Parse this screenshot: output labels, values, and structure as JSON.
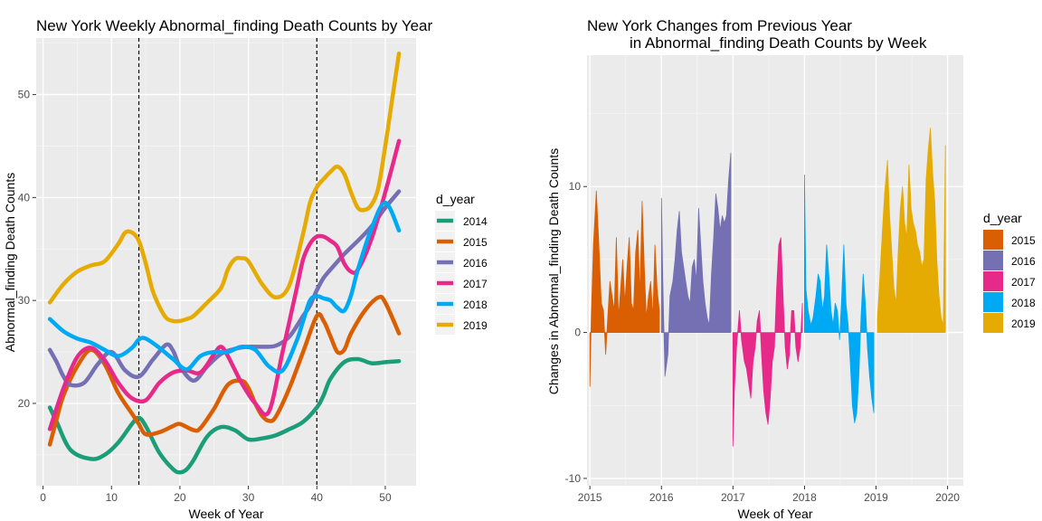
{
  "chart_data": [
    {
      "type": "line",
      "title": "New York Weekly Abnormal_finding Death Counts by Year",
      "xlabel": "Week of Year",
      "ylabel": "Abnormal_finding Death Counts",
      "xlim": [
        -1,
        54.5
      ],
      "ylim": [
        12,
        55.5
      ],
      "x_ticks": [
        0,
        10,
        20,
        30,
        40,
        50
      ],
      "y_ticks": [
        20,
        30,
        40,
        50
      ],
      "vlines": [
        14,
        40
      ],
      "grid": true,
      "legend": {
        "title": "d_year",
        "position": "right"
      },
      "series": [
        {
          "name": "2014",
          "color": "#1b9e77",
          "x": [
            1,
            2,
            4,
            7,
            9,
            11,
            13,
            14,
            15,
            17,
            19,
            20,
            21,
            22,
            24,
            26,
            28,
            30,
            32,
            34,
            36,
            38,
            40,
            41,
            42,
            44,
            46,
            48,
            50,
            52
          ],
          "y": [
            19.6,
            18.2,
            15.5,
            14.6,
            15.0,
            16.2,
            18.0,
            18.6,
            17.8,
            15.2,
            13.6,
            13.3,
            13.6,
            14.5,
            16.8,
            17.7,
            17.4,
            16.5,
            16.6,
            16.9,
            17.5,
            18.2,
            19.6,
            20.8,
            22.4,
            24.0,
            24.3,
            23.9,
            24.0,
            24.1
          ]
        },
        {
          "name": "2015",
          "color": "#d95f02",
          "x": [
            1,
            2,
            3,
            5,
            7,
            9,
            11,
            13,
            14,
            15,
            17,
            19,
            20,
            22,
            23,
            25,
            27,
            29,
            30,
            31,
            32,
            33,
            34,
            36,
            38,
            40,
            41,
            42,
            43,
            44,
            45,
            47,
            49,
            50,
            52
          ],
          "y": [
            16.0,
            18.5,
            20.8,
            23.6,
            25.2,
            23.8,
            21.0,
            19.0,
            18.0,
            17.0,
            17.2,
            17.8,
            18.0,
            17.4,
            17.6,
            19.5,
            21.8,
            22.2,
            21.5,
            20.0,
            18.8,
            18.3,
            18.7,
            21.5,
            25.0,
            28.5,
            28.0,
            26.5,
            25.0,
            25.2,
            26.8,
            29.0,
            30.3,
            29.8,
            26.8
          ]
        },
        {
          "name": "2016",
          "color": "#7570b3",
          "x": [
            1,
            2,
            3,
            4,
            6,
            8,
            10,
            12,
            14,
            16,
            18,
            19,
            20,
            22,
            24,
            26,
            28,
            30,
            32,
            34,
            36,
            38,
            39,
            40,
            41,
            42,
            44,
            46,
            48,
            50,
            52
          ],
          "y": [
            25.2,
            24.0,
            22.6,
            21.8,
            22.0,
            23.8,
            25.0,
            23.2,
            22.6,
            24.2,
            25.7,
            25.1,
            23.6,
            22.2,
            23.6,
            24.8,
            25.3,
            25.5,
            25.5,
            25.6,
            26.5,
            28.5,
            29.5,
            31.0,
            32.2,
            33.0,
            34.5,
            35.8,
            37.2,
            39.0,
            40.6
          ]
        },
        {
          "name": "2017",
          "color": "#e7298a",
          "x": [
            1,
            3,
            5,
            7,
            9,
            11,
            13,
            15,
            17,
            19,
            21,
            23,
            25,
            26,
            27,
            29,
            31,
            33,
            35,
            37,
            38,
            39,
            40,
            41,
            42,
            43,
            44,
            45,
            46,
            48,
            50,
            52
          ],
          "y": [
            17.5,
            21.5,
            24.5,
            25.4,
            24.2,
            22.0,
            20.5,
            20.3,
            22.0,
            23.0,
            23.2,
            23.0,
            24.8,
            25.5,
            24.6,
            22.0,
            20.0,
            19.2,
            25.0,
            31.0,
            34.0,
            35.5,
            36.2,
            36.2,
            35.8,
            35.2,
            33.6,
            32.8,
            33.0,
            36.0,
            40.5,
            45.5
          ]
        },
        {
          "name": "2018",
          "color": "#00a9f4",
          "x": [
            1,
            3,
            5,
            7,
            9,
            11,
            13,
            14,
            15,
            17,
            19,
            21,
            23,
            25,
            27,
            29,
            31,
            33,
            35,
            37,
            38,
            39,
            40,
            41,
            42,
            43,
            44,
            45,
            46,
            48,
            50,
            52
          ],
          "y": [
            28.2,
            27.0,
            26.3,
            25.9,
            25.2,
            24.6,
            25.4,
            26.2,
            26.3,
            25.4,
            24.3,
            23.3,
            24.6,
            25.0,
            25.0,
            25.5,
            25.2,
            23.6,
            23.2,
            26.0,
            28.0,
            30.0,
            30.4,
            30.2,
            30.0,
            29.3,
            29.0,
            30.5,
            33.0,
            37.0,
            39.5,
            36.8
          ]
        },
        {
          "name": "2019",
          "color": "#e6ab02",
          "x": [
            1,
            3,
            5,
            7,
            9,
            11,
            12,
            13,
            14,
            15,
            16,
            17,
            18,
            19,
            20,
            21,
            22,
            24,
            26,
            27,
            28,
            29,
            30,
            32,
            34,
            36,
            38,
            39,
            40,
            41,
            42,
            43,
            44,
            45,
            46,
            47,
            48,
            49,
            50,
            51,
            52
          ],
          "y": [
            29.8,
            31.6,
            32.8,
            33.4,
            33.8,
            35.5,
            36.6,
            36.6,
            35.8,
            33.6,
            31.0,
            29.4,
            28.3,
            28.0,
            28.0,
            28.2,
            28.5,
            29.8,
            31.2,
            33.0,
            34.0,
            34.1,
            33.8,
            31.6,
            30.3,
            31.5,
            36.5,
            39.5,
            41.0,
            41.8,
            42.5,
            43.0,
            42.3,
            40.5,
            39.0,
            38.8,
            39.3,
            41.0,
            45.0,
            49.5,
            54.0
          ]
        }
      ]
    },
    {
      "type": "bar",
      "title": [
        "New York Changes from Previous Year",
        "in Abnormal_finding Death Counts by Week"
      ],
      "xlabel": "Week of Year",
      "ylabel": "Changes in Abnormal_finding Death Counts",
      "xlim": [
        2014.96,
        2020.22
      ],
      "ylim": [
        -10.5,
        19
      ],
      "x_ticks": [
        2015,
        2016,
        2017,
        2018,
        2019,
        2020
      ],
      "y_ticks": [
        -10,
        0,
        10
      ],
      "grid": true,
      "legend": {
        "title": "d_year",
        "position": "right"
      },
      "series": [
        {
          "name": "2015",
          "color": "#d95f02",
          "x": [
            2015.0,
            2015.02,
            2015.05,
            2015.09,
            2015.12,
            2015.16,
            2015.19,
            2015.22,
            2015.25,
            2015.28,
            2015.31,
            2015.34,
            2015.37,
            2015.4,
            2015.43,
            2015.46,
            2015.49,
            2015.52,
            2015.55,
            2015.58,
            2015.61,
            2015.64,
            2015.67,
            2015.7,
            2015.73,
            2015.76,
            2015.79,
            2015.82,
            2015.85,
            2015.88,
            2015.91,
            2015.94,
            2015.97
          ],
          "y": [
            -3.7,
            1.0,
            6.0,
            9.7,
            6.5,
            2.0,
            1.5,
            -1.5,
            1.0,
            3.5,
            2.5,
            1.5,
            6.5,
            1.0,
            3.0,
            5.0,
            2.0,
            4.5,
            6.5,
            2.0,
            1.5,
            5.5,
            7.0,
            2.5,
            9.0,
            4.5,
            1.0,
            2.5,
            3.5,
            1.0,
            6.0,
            3.0,
            1.5
          ]
        },
        {
          "name": "2016",
          "color": "#7570b3",
          "x": [
            2016.0,
            2016.02,
            2016.05,
            2016.09,
            2016.12,
            2016.16,
            2016.19,
            2016.22,
            2016.25,
            2016.28,
            2016.31,
            2016.34,
            2016.37,
            2016.4,
            2016.43,
            2016.46,
            2016.49,
            2016.52,
            2016.55,
            2016.58,
            2016.61,
            2016.64,
            2016.67,
            2016.7,
            2016.73,
            2016.76,
            2016.79,
            2016.82,
            2016.85,
            2016.88,
            2016.91,
            2016.94,
            2016.97
          ],
          "y": [
            9.2,
            3.5,
            -3.0,
            -1.5,
            2.5,
            3.5,
            5.0,
            7.0,
            8.3,
            5.5,
            4.5,
            3.5,
            2.5,
            2.0,
            4.5,
            5.0,
            3.5,
            8.5,
            6.0,
            3.5,
            2.0,
            1.0,
            0.5,
            4.0,
            6.5,
            9.5,
            8.5,
            7.0,
            8.0,
            7.5,
            8.0,
            10.5,
            12.3
          ]
        },
        {
          "name": "2017",
          "color": "#e7298a",
          "x": [
            2017.0,
            2017.02,
            2017.05,
            2017.09,
            2017.12,
            2017.16,
            2017.19,
            2017.22,
            2017.25,
            2017.28,
            2017.31,
            2017.34,
            2017.37,
            2017.4,
            2017.43,
            2017.46,
            2017.49,
            2017.52,
            2017.55,
            2017.58,
            2017.61,
            2017.64,
            2017.67,
            2017.7,
            2017.73,
            2017.76,
            2017.79,
            2017.82,
            2017.85,
            2017.88,
            2017.91,
            2017.94,
            2017.97
          ],
          "y": [
            -7.8,
            -4.0,
            -1.0,
            1.5,
            -0.5,
            -2.0,
            -2.5,
            -3.5,
            -4.5,
            -2.0,
            -1.0,
            0.8,
            1.5,
            -1.5,
            -4.0,
            -5.5,
            -6.3,
            -4.5,
            -2.0,
            -1.0,
            3.0,
            6.0,
            6.5,
            2.5,
            -1.0,
            -2.5,
            -1.5,
            1.5,
            1.5,
            -1.0,
            -2.0,
            -1.0,
            2.0
          ]
        },
        {
          "name": "2018",
          "color": "#00a9f4",
          "x": [
            2018.0,
            2018.02,
            2018.05,
            2018.09,
            2018.12,
            2018.16,
            2018.19,
            2018.22,
            2018.25,
            2018.28,
            2018.31,
            2018.34,
            2018.37,
            2018.4,
            2018.43,
            2018.46,
            2018.49,
            2018.52,
            2018.55,
            2018.58,
            2018.61,
            2018.64,
            2018.67,
            2018.7,
            2018.73,
            2018.76,
            2018.79,
            2018.82,
            2018.85,
            2018.88,
            2018.91,
            2018.94,
            2018.97
          ],
          "y": [
            10.8,
            3.0,
            1.5,
            0.5,
            1.0,
            2.5,
            4.0,
            3.5,
            1.5,
            2.5,
            6.0,
            4.0,
            1.5,
            0.5,
            2.0,
            1.5,
            -0.5,
            2.5,
            6.0,
            2.0,
            0.5,
            -2.0,
            -5.0,
            -6.2,
            -5.5,
            -3.0,
            1.0,
            4.0,
            2.0,
            -1.0,
            -3.0,
            -4.5,
            -5.5
          ]
        },
        {
          "name": "2019",
          "color": "#e6ab02",
          "x": [
            2019.02,
            2019.05,
            2019.09,
            2019.12,
            2019.16,
            2019.19,
            2019.22,
            2019.25,
            2019.28,
            2019.31,
            2019.34,
            2019.37,
            2019.4,
            2019.43,
            2019.46,
            2019.49,
            2019.52,
            2019.55,
            2019.58,
            2019.61,
            2019.64,
            2019.67,
            2019.7,
            2019.73,
            2019.76,
            2019.79,
            2019.82,
            2019.85,
            2019.88,
            2019.91,
            2019.94,
            2019.97
          ],
          "y": [
            1.0,
            3.5,
            7.0,
            9.5,
            11.8,
            8.0,
            5.5,
            3.0,
            2.0,
            5.5,
            8.5,
            10.0,
            7.5,
            6.5,
            11.5,
            8.5,
            7.5,
            7.0,
            6.0,
            5.5,
            4.5,
            5.0,
            10.5,
            12.5,
            14.0,
            11.0,
            9.0,
            5.0,
            2.5,
            1.0,
            0.5,
            12.8
          ]
        }
      ]
    }
  ]
}
